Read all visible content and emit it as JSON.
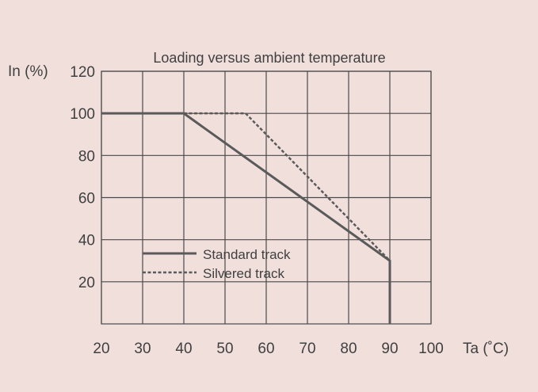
{
  "chart_data": {
    "type": "line",
    "title": "Loading versus ambient temperature",
    "ylabel": "In (%)",
    "xlabel": "Ta (˚C)",
    "xlim": [
      20,
      100
    ],
    "ylim": [
      0,
      120
    ],
    "xticks": [
      20,
      30,
      40,
      50,
      60,
      70,
      80,
      90,
      100
    ],
    "yticks": [
      20,
      40,
      60,
      80,
      100,
      120
    ],
    "grid": true,
    "legend_position": "lower-left",
    "series": [
      {
        "name": "Standard track",
        "style": "solid",
        "x": [
          20,
          40,
          90,
          90
        ],
        "y": [
          100,
          100,
          30,
          0
        ]
      },
      {
        "name": "Silvered track",
        "style": "dashed",
        "x": [
          40,
          55,
          90
        ],
        "y": [
          100,
          100,
          30
        ]
      }
    ]
  },
  "colors": {
    "background": "#f1dfdc",
    "line": "#5a5a5a",
    "grid": "#4a4a4a",
    "text": "#404040"
  }
}
